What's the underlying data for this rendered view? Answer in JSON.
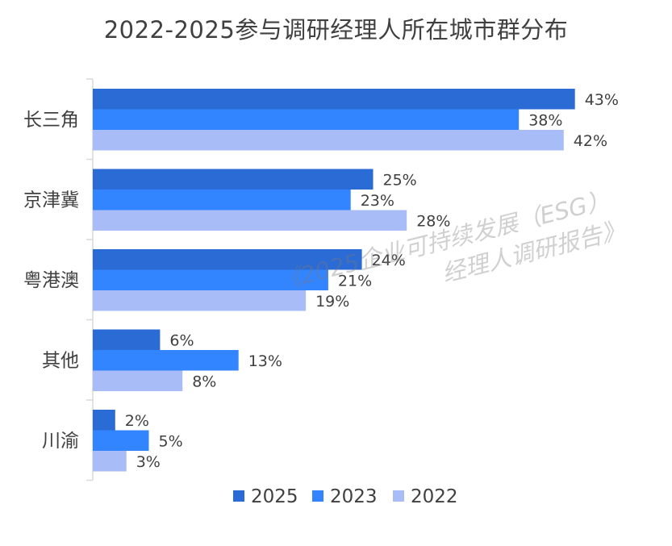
{
  "chart_data": {
    "type": "bar",
    "orientation": "horizontal",
    "title": "2022-2025参与调研经理人所在城市群分布",
    "categories": [
      "长三角",
      "京津冀",
      "粤港澳",
      "其他",
      "川渝"
    ],
    "series": [
      {
        "name": "2025",
        "color": "#2B6BD6",
        "values": [
          43,
          25,
          24,
          6,
          2
        ],
        "labels": [
          "43%",
          "25%",
          "24%",
          "6%",
          "2%"
        ]
      },
      {
        "name": "2023",
        "color": "#3385FF",
        "values": [
          38,
          23,
          21,
          13,
          5
        ],
        "labels": [
          "38%",
          "23%",
          "21%",
          "13%",
          "5%"
        ]
      },
      {
        "name": "2022",
        "color": "#A8BDF7",
        "values": [
          42,
          28,
          19,
          8,
          3
        ],
        "labels": [
          "42%",
          "28%",
          "19%",
          "8%",
          "3%"
        ]
      }
    ],
    "value_unit": "%",
    "legend_position": "bottom",
    "grid": false
  },
  "watermark": {
    "line1": "《2025企业可持续发展（ESG）",
    "line2": "经理人调研报告》"
  }
}
